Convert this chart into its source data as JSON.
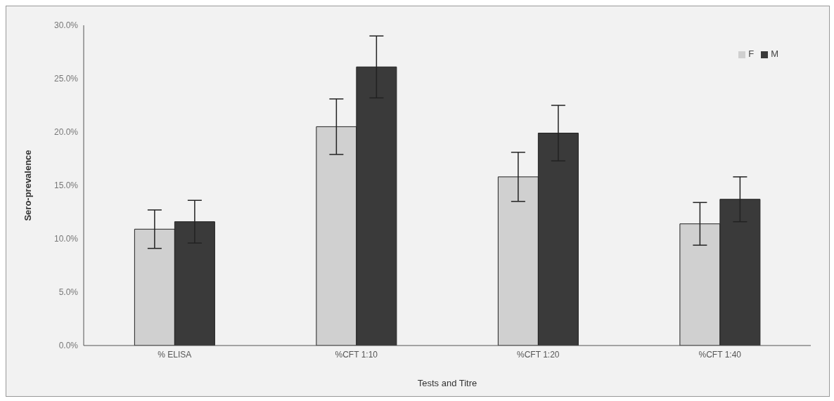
{
  "chart_data": {
    "type": "bar",
    "xlabel": "Tests and Titre",
    "ylabel": "Sero-prevalence",
    "categories": [
      "% ELISA",
      "%CFT 1:10",
      "%CFT 1:20",
      "%CFT 1:40"
    ],
    "series": [
      {
        "name": "F",
        "color": "#d0d0d0",
        "values": [
          10.9,
          20.5,
          15.8,
          11.4
        ],
        "errors": [
          1.8,
          2.6,
          2.3,
          2.0
        ]
      },
      {
        "name": "M",
        "color": "#3a3a3a",
        "values": [
          11.6,
          26.1,
          19.9,
          13.7
        ],
        "errors": [
          2.0,
          2.9,
          2.6,
          2.1
        ]
      }
    ],
    "ylim": [
      0,
      30
    ],
    "yticks": [
      {
        "value": 0,
        "label": "0.0%"
      },
      {
        "value": 5,
        "label": "5.0%"
      },
      {
        "value": 10,
        "label": "10.0%"
      },
      {
        "value": 15,
        "label": "15.0%"
      },
      {
        "value": 20,
        "label": "20.0%"
      },
      {
        "value": 25,
        "label": "25.0%"
      },
      {
        "value": 30,
        "label": "30.0%"
      }
    ],
    "grid": false,
    "legend": "top right"
  }
}
